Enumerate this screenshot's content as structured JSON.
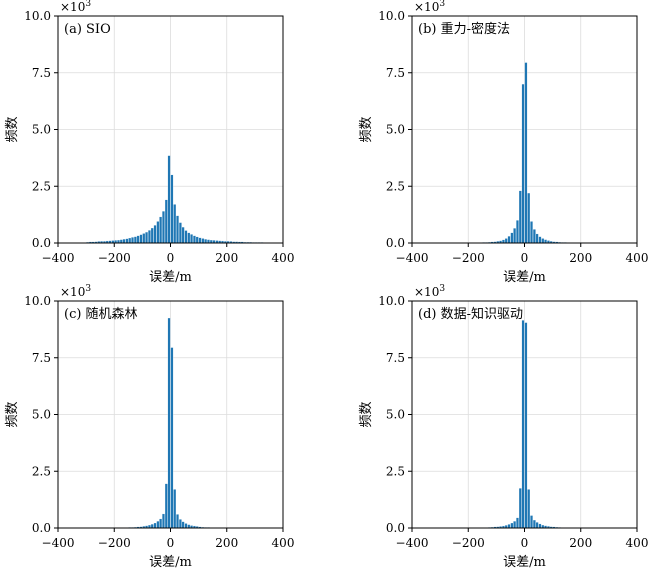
{
  "chart_data": [
    {
      "type": "bar",
      "title": "(a) SIO",
      "xlabel": "误差/m",
      "ylabel": "频数",
      "xlim": [
        -400,
        400
      ],
      "ylim": [
        0,
        10.0
      ],
      "y_multiplier_label": "×10",
      "y_multiplier_exp": "3",
      "xticks": [
        "−400",
        "−200",
        "0",
        "200",
        "400"
      ],
      "yticks": [
        "0.0",
        "2.5",
        "5.0",
        "7.5",
        "10.0"
      ],
      "grid": true,
      "bin_width": 10,
      "color": "#1f77b4",
      "x": [
        -295,
        -285,
        -275,
        -265,
        -255,
        -245,
        -235,
        -225,
        -215,
        -205,
        -195,
        -185,
        -175,
        -165,
        -155,
        -145,
        -135,
        -125,
        -115,
        -105,
        -95,
        -85,
        -75,
        -65,
        -55,
        -45,
        -35,
        -25,
        -15,
        -5,
        5,
        15,
        25,
        35,
        45,
        55,
        65,
        75,
        85,
        95,
        105,
        115,
        125,
        135,
        145,
        155,
        165,
        175,
        185,
        195,
        205,
        215,
        225,
        235,
        245,
        255,
        265,
        275,
        285,
        295,
        305,
        315,
        325,
        335,
        345,
        355,
        365
      ],
      "values": [
        0.04,
        0.05,
        0.05,
        0.06,
        0.07,
        0.08,
        0.08,
        0.09,
        0.1,
        0.11,
        0.12,
        0.13,
        0.15,
        0.17,
        0.19,
        0.22,
        0.25,
        0.28,
        0.32,
        0.37,
        0.42,
        0.48,
        0.56,
        0.66,
        0.78,
        0.95,
        1.15,
        1.4,
        1.9,
        3.85,
        3.0,
        1.7,
        1.2,
        0.9,
        0.7,
        0.55,
        0.45,
        0.38,
        0.32,
        0.27,
        0.23,
        0.2,
        0.17,
        0.15,
        0.13,
        0.12,
        0.11,
        0.1,
        0.09,
        0.08,
        0.08,
        0.07,
        0.06,
        0.06,
        0.05,
        0.05,
        0.04,
        0.04,
        0.04,
        0.03,
        0.03,
        0.03,
        0.03,
        0.02,
        0.02,
        0.02,
        0.02
      ]
    },
    {
      "type": "bar",
      "title": "(b) 重力-密度法",
      "xlabel": "误差/m",
      "ylabel": "频数",
      "xlim": [
        -400,
        400
      ],
      "ylim": [
        0,
        10.0
      ],
      "y_multiplier_label": "×10",
      "y_multiplier_exp": "3",
      "xticks": [
        "−400",
        "−200",
        "0",
        "200",
        "400"
      ],
      "yticks": [
        "0.0",
        "2.5",
        "5.0",
        "7.5",
        "10.0"
      ],
      "grid": true,
      "bin_width": 10,
      "color": "#1f77b4",
      "x": [
        -155,
        -145,
        -135,
        -125,
        -115,
        -105,
        -95,
        -85,
        -75,
        -65,
        -55,
        -45,
        -35,
        -25,
        -15,
        -5,
        5,
        15,
        25,
        35,
        45,
        55,
        65,
        75,
        85,
        95,
        105,
        115,
        125,
        135,
        145,
        155
      ],
      "values": [
        0.02,
        0.03,
        0.03,
        0.04,
        0.05,
        0.06,
        0.08,
        0.1,
        0.14,
        0.2,
        0.3,
        0.45,
        0.65,
        1.0,
        2.3,
        7.0,
        7.95,
        2.2,
        0.95,
        0.6,
        0.4,
        0.28,
        0.2,
        0.15,
        0.11,
        0.08,
        0.06,
        0.05,
        0.04,
        0.03,
        0.03,
        0.02
      ]
    },
    {
      "type": "bar",
      "title": "(c) 随机森林",
      "xlabel": "误差/m",
      "ylabel": "频数",
      "xlim": [
        -400,
        400
      ],
      "ylim": [
        0,
        10.0
      ],
      "y_multiplier_label": "×10",
      "y_multiplier_exp": "3",
      "xticks": [
        "−400",
        "−200",
        "0",
        "200",
        "400"
      ],
      "yticks": [
        "0.0",
        "2.5",
        "5.0",
        "7.5",
        "10.0"
      ],
      "grid": true,
      "bin_width": 10,
      "color": "#1f77b4",
      "x": [
        -185,
        -175,
        -165,
        -155,
        -145,
        -135,
        -125,
        -115,
        -105,
        -95,
        -85,
        -75,
        -65,
        -55,
        -45,
        -35,
        -25,
        -15,
        -5,
        5,
        15,
        25,
        35,
        45,
        55,
        65,
        75,
        85,
        95,
        105,
        115,
        125,
        135,
        145,
        155,
        165,
        175,
        185
      ],
      "values": [
        0.01,
        0.01,
        0.02,
        0.02,
        0.03,
        0.03,
        0.04,
        0.05,
        0.06,
        0.08,
        0.1,
        0.13,
        0.17,
        0.22,
        0.3,
        0.4,
        0.62,
        1.95,
        9.25,
        7.95,
        1.7,
        0.6,
        0.38,
        0.28,
        0.2,
        0.15,
        0.11,
        0.09,
        0.07,
        0.05,
        0.04,
        0.03,
        0.03,
        0.02,
        0.02,
        0.01,
        0.01,
        0.01
      ]
    },
    {
      "type": "bar",
      "title": "(d) 数据-知识驱动",
      "xlabel": "误差/m",
      "ylabel": "频数",
      "xlim": [
        -400,
        400
      ],
      "ylim": [
        0,
        10.0
      ],
      "y_multiplier_label": "×10",
      "y_multiplier_exp": "3",
      "xticks": [
        "−400",
        "−200",
        "0",
        "200",
        "400"
      ],
      "yticks": [
        "0.0",
        "2.5",
        "5.0",
        "7.5",
        "10.0"
      ],
      "grid": true,
      "bin_width": 10,
      "color": "#1f77b4",
      "x": [
        -175,
        -165,
        -155,
        -145,
        -135,
        -125,
        -115,
        -105,
        -95,
        -85,
        -75,
        -65,
        -55,
        -45,
        -35,
        -25,
        -15,
        -5,
        5,
        15,
        25,
        35,
        45,
        55,
        65,
        75,
        85,
        95,
        105,
        115,
        125,
        135,
        145,
        155,
        165,
        175
      ],
      "values": [
        0.01,
        0.01,
        0.02,
        0.02,
        0.02,
        0.03,
        0.04,
        0.05,
        0.06,
        0.07,
        0.09,
        0.12,
        0.16,
        0.22,
        0.3,
        0.45,
        1.75,
        9.15,
        9.05,
        1.7,
        0.55,
        0.35,
        0.25,
        0.18,
        0.13,
        0.1,
        0.08,
        0.06,
        0.05,
        0.04,
        0.03,
        0.02,
        0.02,
        0.02,
        0.01,
        0.01
      ]
    }
  ]
}
